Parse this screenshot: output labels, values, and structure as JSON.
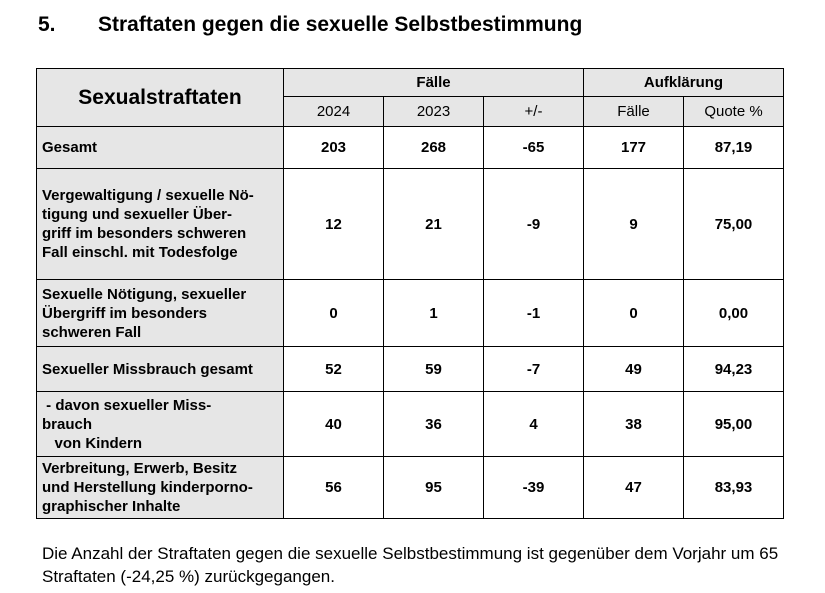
{
  "section": {
    "number": "5.",
    "title": "Straftaten gegen die sexuelle Selbstbestimmung"
  },
  "table": {
    "corner": "Sexualstraftaten",
    "group_faelle": "Fälle",
    "group_aufklaerung": "Aufklärung",
    "sub": [
      "2024",
      "2023",
      "+/-",
      "Fälle",
      "Quote %"
    ],
    "rows": [
      {
        "label": "Gesamt",
        "values": [
          "203",
          "268",
          "-65",
          "177",
          "87,19"
        ]
      },
      {
        "label": "Vergewaltigung / sexuelle Nö-\ntigung und sexueller Über-\ngriff im besonders schweren\nFall einschl. mit Todesfolge",
        "values": [
          "12",
          "21",
          "-9",
          "9",
          "75,00"
        ]
      },
      {
        "label": "Sexuelle Nötigung, sexueller\nÜbergriff im besonders\nschweren Fall",
        "values": [
          "0",
          "1",
          "-1",
          "0",
          "0,00"
        ]
      },
      {
        "label": "Sexueller Missbrauch gesamt",
        "values": [
          "52",
          "59",
          "-7",
          "49",
          "94,23"
        ]
      },
      {
        "label": " - davon sexueller Miss-\nbrauch\n   von Kindern",
        "values": [
          "40",
          "36",
          "4",
          "38",
          "95,00"
        ]
      },
      {
        "label": "Verbreitung, Erwerb, Besitz\nund Herstellung kinderporno-\ngraphischer Inhalte",
        "values": [
          "56",
          "95",
          "-39",
          "47",
          "83,93"
        ]
      }
    ]
  },
  "footnote": "Die Anzahl der Straftaten gegen die sexuelle Selbstbestimmung ist gegenüber dem Vorjahr um 65 Straftaten (-24,25 %) zurückgegangen."
}
